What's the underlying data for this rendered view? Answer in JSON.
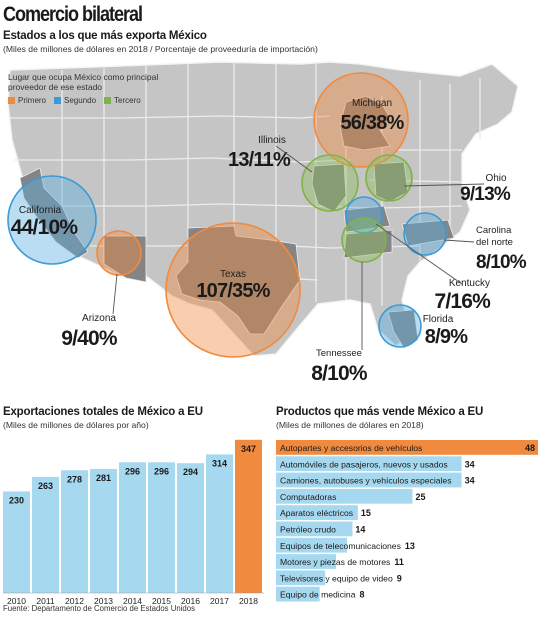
{
  "title": "Comercio bilateral",
  "map": {
    "title": "Estados a los que más exporta México",
    "subtitle": "(Miles de millones de dólares en 2018 / Porcentaje de proveeduría de importación)",
    "legend_title": "Lugar que ocupa México como principal proveedor de ese estado",
    "legend": [
      {
        "label": "Primero",
        "color": "#f08a3e"
      },
      {
        "label": "Segundo",
        "color": "#3b9bd6"
      },
      {
        "label": "Tercero",
        "color": "#7fb24a"
      }
    ],
    "states": [
      {
        "name": "Michigan",
        "value": "56/38%",
        "rank": 1
      },
      {
        "name": "Illinois",
        "value": "13/11%",
        "rank": 3
      },
      {
        "name": "Ohio",
        "value": "9/13%",
        "rank": 3
      },
      {
        "name": "California",
        "value": "44/10%",
        "rank": 2
      },
      {
        "name": "Carolina del norte",
        "value": "8/10%",
        "rank": 2
      },
      {
        "name": "Texas",
        "value": "107/35%",
        "rank": 1
      },
      {
        "name": "Arizona",
        "value": "9/40%",
        "rank": 1
      },
      {
        "name": "Kentucky",
        "value": "7/16%",
        "rank": 2
      },
      {
        "name": "Florida",
        "value": "8/9%",
        "rank": 2
      },
      {
        "name": "Tennessee",
        "value": "8/10%",
        "rank": 3
      }
    ]
  },
  "chart_data": [
    {
      "type": "bar",
      "title": "Exportaciones totales de México a EU",
      "subtitle": "(Miles de millones de dólares por año)",
      "categories": [
        "2010",
        "2011",
        "2012",
        "2013",
        "2014",
        "2015",
        "2016",
        "2017",
        "2018"
      ],
      "values": [
        230,
        263,
        278,
        281,
        296,
        296,
        294,
        314,
        347
      ],
      "colors": {
        "bar": "#a6d8f0",
        "highlight": "#f08a3e"
      },
      "highlight_category": "2018",
      "ylim": [
        0,
        360
      ]
    },
    {
      "type": "bar",
      "orientation": "horizontal",
      "title": "Productos que más vende México a EU",
      "subtitle": "(Miles de millones de dólares en 2018)",
      "categories": [
        "Autopartes y accesorios de vehículos",
        "Automóviles de pasajeros, nuevos y usados",
        "Camiones, autobuses y vehículos especiales",
        "Computadoras",
        "Aparatos eléctricos",
        "Petróleo crudo",
        "Equipos de telecomunicaciones",
        "Motores y piezas de motores",
        "Televisores y equipo de video",
        "Equipo de medicina"
      ],
      "values": [
        48,
        34,
        34,
        25,
        15,
        14,
        13,
        11,
        9,
        8
      ],
      "colors": {
        "bar": "#a6d8f0",
        "highlight": "#f08a3e"
      },
      "xlim": [
        0,
        48
      ]
    }
  ],
  "source": "Fuente: Departamento de Comercio de Estados Unidos"
}
